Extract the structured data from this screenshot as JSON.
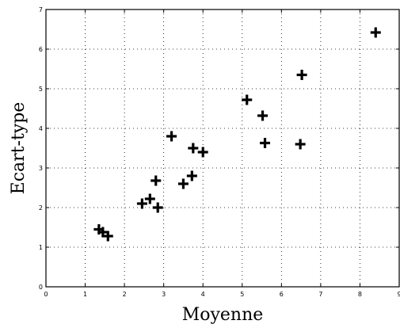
{
  "chart_data": {
    "type": "scatter",
    "title": "",
    "xlabel": "Moyenne",
    "ylabel": "Ecart-type",
    "xlim": [
      0,
      9
    ],
    "ylim": [
      0,
      7
    ],
    "xticks": [
      0,
      1,
      2,
      3,
      4,
      5,
      6,
      7,
      8,
      9
    ],
    "yticks": [
      0,
      1,
      2,
      3,
      4,
      5,
      6,
      7
    ],
    "xtick_labels": [
      "0",
      "1",
      "2",
      "3",
      "4",
      "5",
      "6",
      "7",
      "8",
      "9"
    ],
    "ytick_labels": [
      "0",
      "1",
      "2",
      "3",
      "4",
      "5",
      "6",
      "7"
    ],
    "grid": true,
    "marker": "+",
    "series": [
      {
        "points": [
          [
            1.35,
            1.45
          ],
          [
            1.45,
            1.38
          ],
          [
            1.58,
            1.28
          ],
          [
            2.45,
            2.1
          ],
          [
            2.65,
            2.22
          ],
          [
            2.8,
            2.68
          ],
          [
            2.85,
            2.0
          ],
          [
            3.2,
            3.8
          ],
          [
            3.5,
            2.6
          ],
          [
            3.72,
            2.8
          ],
          [
            3.75,
            3.5
          ],
          [
            4.0,
            3.4
          ],
          [
            5.12,
            4.72
          ],
          [
            5.52,
            4.32
          ],
          [
            5.58,
            3.63
          ],
          [
            6.48,
            3.6
          ],
          [
            6.52,
            5.35
          ],
          [
            8.4,
            6.42
          ]
        ]
      }
    ]
  }
}
